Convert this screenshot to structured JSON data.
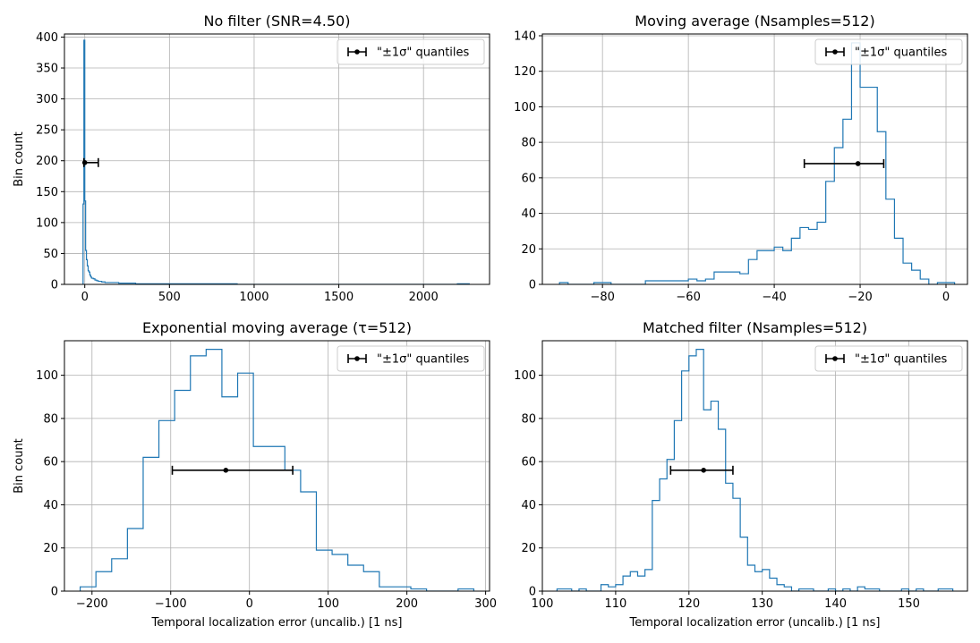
{
  "chart_data": [
    {
      "type": "histogram",
      "title": "No filter (SNR=4.50)",
      "xlabel": "",
      "ylabel": "Bin count",
      "xlim": [
        -120,
        2390
      ],
      "ylim": [
        0,
        405
      ],
      "xticks": [
        0,
        500,
        1000,
        1500,
        2000
      ],
      "yticks": [
        0,
        50,
        100,
        150,
        200,
        250,
        300,
        350,
        400
      ],
      "grid": true,
      "legend": {
        "position": "top-right",
        "label": "\"±1σ\" quantiles"
      },
      "bin_edges": [
        -10,
        -5,
        0,
        5,
        10,
        15,
        20,
        25,
        30,
        35,
        40,
        50,
        60,
        70,
        80,
        100,
        120,
        150,
        200,
        250,
        300,
        350,
        400,
        500,
        600,
        700,
        800,
        900,
        1000,
        2200,
        2270
      ],
      "counts": [
        130,
        395,
        135,
        55,
        40,
        30,
        22,
        20,
        15,
        12,
        10,
        9,
        7,
        6,
        5,
        4,
        3,
        3,
        2,
        2,
        1,
        1,
        1,
        1,
        1,
        1,
        1,
        0,
        0,
        1
      ],
      "errorbar": {
        "center": 0,
        "y": 197,
        "low": -5,
        "high": 80
      }
    },
    {
      "type": "histogram",
      "title": "Moving average (Nsamples=512)",
      "xlabel": "",
      "ylabel": "",
      "xlim": [
        -94,
        5
      ],
      "ylim": [
        0,
        141
      ],
      "xticks": [
        -80,
        -60,
        -40,
        -20,
        0
      ],
      "yticks": [
        0,
        20,
        40,
        60,
        80,
        100,
        120,
        140
      ],
      "grid": true,
      "legend": {
        "position": "top-right",
        "label": "\"±1σ\" quantiles"
      },
      "bin_edges": [
        -90,
        -88,
        -86,
        -84,
        -82,
        -80,
        -78,
        -76,
        -74,
        -72,
        -70,
        -68,
        -66,
        -64,
        -62,
        -60,
        -58,
        -56,
        -54,
        -52,
        -50,
        -48,
        -46,
        -44,
        -42,
        -40,
        -38,
        -36,
        -34,
        -32,
        -30,
        -28,
        -26,
        -24,
        -22,
        -20,
        -18,
        -16,
        -14,
        -12,
        -10,
        -8,
        -6,
        -4,
        -2,
        0,
        2
      ],
      "counts": [
        1,
        0,
        0,
        0,
        1,
        1,
        0,
        0,
        0,
        0,
        2,
        2,
        2,
        2,
        2,
        3,
        2,
        3,
        7,
        7,
        7,
        6,
        14,
        19,
        19,
        21,
        19,
        26,
        32,
        31,
        35,
        58,
        77,
        93,
        136,
        111,
        111,
        86,
        48,
        26,
        12,
        8,
        3,
        0,
        1,
        1
      ],
      "errorbar": {
        "center": -20.5,
        "y": 68,
        "low": -33,
        "high": -14.5
      }
    },
    {
      "type": "histogram",
      "title": "Exponential moving average (τ=512)",
      "xlabel": "Temporal localization error (uncalib.) [1 ns]",
      "ylabel": "Bin count",
      "xlim": [
        -235,
        305
      ],
      "ylim": [
        0,
        116
      ],
      "xticks": [
        -200,
        -100,
        0,
        100,
        200,
        300
      ],
      "yticks": [
        0,
        20,
        40,
        60,
        80,
        100
      ],
      "grid": true,
      "legend": {
        "position": "top-right",
        "label": "\"±1σ\" quantiles"
      },
      "bin_edges": [
        -215,
        -195,
        -175,
        -155,
        -135,
        -115,
        -95,
        -75,
        -55,
        -35,
        -15,
        5,
        25,
        45,
        65,
        85,
        105,
        125,
        145,
        165,
        185,
        205,
        225,
        245,
        265,
        285
      ],
      "counts": [
        2,
        9,
        15,
        29,
        62,
        79,
        93,
        109,
        112,
        90,
        101,
        67,
        67,
        56,
        46,
        19,
        17,
        12,
        9,
        2,
        2,
        1,
        0,
        0,
        1
      ],
      "errorbar": {
        "center": -30,
        "y": 56,
        "low": -98,
        "high": 55
      }
    },
    {
      "type": "histogram",
      "title": "Matched filter (Nsamples=512)",
      "xlabel": "Temporal localization error (uncalib.) [1 ns]",
      "ylabel": "",
      "xlim": [
        100,
        158
      ],
      "ylim": [
        0,
        116
      ],
      "xticks": [
        100,
        110,
        120,
        130,
        140,
        150
      ],
      "yticks": [
        0,
        20,
        40,
        60,
        80,
        100
      ],
      "grid": true,
      "legend": {
        "position": "top-right",
        "label": "\"±1σ\" quantiles"
      },
      "bin_edges": [
        102,
        103,
        104,
        105,
        106,
        107,
        108,
        109,
        110,
        111,
        112,
        113,
        114,
        115,
        116,
        117,
        118,
        119,
        120,
        121,
        122,
        123,
        124,
        125,
        126,
        127,
        128,
        129,
        130,
        131,
        132,
        133,
        134,
        135,
        136,
        137,
        138,
        139,
        140,
        141,
        142,
        143,
        144,
        145,
        146,
        147,
        148,
        149,
        150,
        151,
        152,
        153,
        154,
        155,
        156
      ],
      "counts": [
        1,
        1,
        0,
        1,
        0,
        0,
        3,
        2,
        3,
        7,
        9,
        7,
        10,
        42,
        52,
        61,
        79,
        102,
        109,
        112,
        84,
        88,
        75,
        50,
        43,
        25,
        12,
        9,
        10,
        6,
        3,
        2,
        0,
        1,
        1,
        0,
        0,
        1,
        0,
        1,
        0,
        2,
        1,
        1,
        0,
        0,
        0,
        1,
        0,
        1,
        0,
        0,
        1,
        1
      ],
      "errorbar": {
        "center": 122,
        "y": 56,
        "low": 117.5,
        "high": 126
      }
    }
  ]
}
